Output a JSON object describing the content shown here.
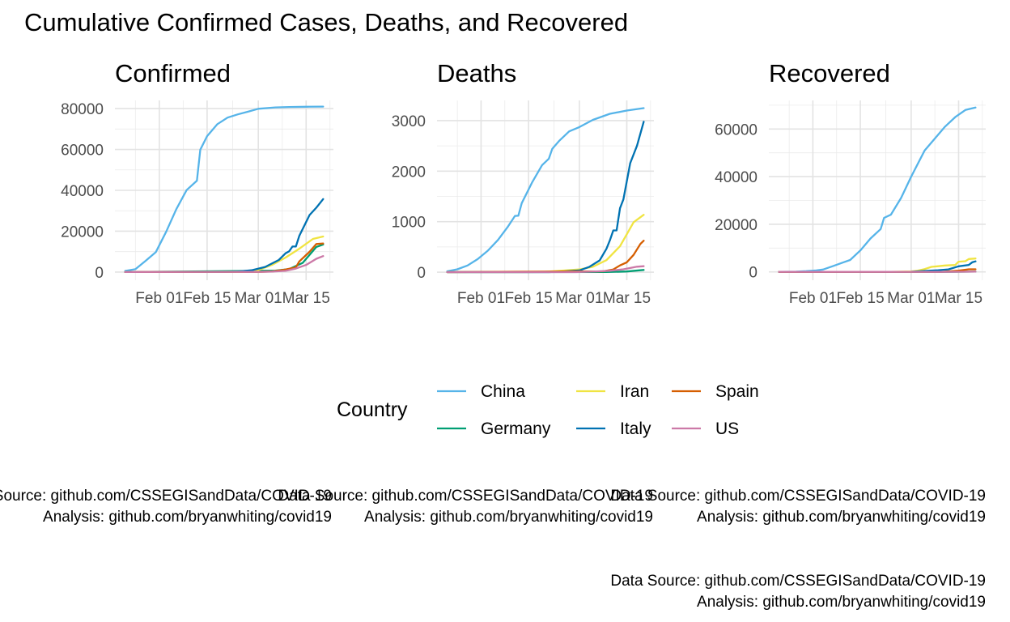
{
  "title": "Cumulative Confirmed Cases, Deaths, and Recovered",
  "legend": {
    "title": "Country",
    "entries": [
      {
        "name": "China",
        "color": "#56B4E9"
      },
      {
        "name": "Iran",
        "color": "#F0E442"
      },
      {
        "name": "Spain",
        "color": "#D55E00"
      },
      {
        "name": "Germany",
        "color": "#009E73"
      },
      {
        "name": "Italy",
        "color": "#0072B2"
      },
      {
        "name": "US",
        "color": "#CC79A7"
      }
    ]
  },
  "captions": [
    {
      "line1": "Data Source: github.com/CSSEGISandData/COVID-19",
      "line2": "Analysis: github.com/bryanwhiting/covid19"
    },
    {
      "line1": "Data Source: github.com/CSSEGISandData/COVID-19",
      "line2": "Analysis: github.com/bryanwhiting/covid19"
    },
    {
      "line1": "Data Source: github.com/CSSEGISandData/COVID-19",
      "line2": "Analysis: github.com/bryanwhiting/covid19"
    },
    {
      "line1": "Data Source: github.com/CSSEGISandData/COVID-19",
      "line2": "Analysis: github.com/bryanwhiting/covid19"
    }
  ],
  "chart_data": [
    {
      "type": "line",
      "title": "Confirmed",
      "xlabel": "",
      "ylabel": "",
      "x_ticks": [
        "Feb 01",
        "Feb 15",
        "Mar 01",
        "Mar 15"
      ],
      "y_ticks": [
        0,
        20000,
        40000,
        60000,
        80000
      ],
      "ylim": [
        -4000,
        84000
      ],
      "grid": true,
      "series": [
        {
          "name": "China",
          "points": [
            [
              "2020-01-22",
              548
            ],
            [
              "2020-01-25",
              1400
            ],
            [
              "2020-01-28",
              5500
            ],
            [
              "2020-01-31",
              9800
            ],
            [
              "2020-02-03",
              19700
            ],
            [
              "2020-02-06",
              30800
            ],
            [
              "2020-02-09",
              40100
            ],
            [
              "2020-02-12",
              44700
            ],
            [
              "2020-02-13",
              59900
            ],
            [
              "2020-02-15",
              66500
            ],
            [
              "2020-02-18",
              72400
            ],
            [
              "2020-02-21",
              75600
            ],
            [
              "2020-02-24",
              77200
            ],
            [
              "2020-02-27",
              78500
            ],
            [
              "2020-03-01",
              79900
            ],
            [
              "2020-03-06",
              80600
            ],
            [
              "2020-03-10",
              80800
            ],
            [
              "2020-03-15",
              80900
            ],
            [
              "2020-03-20",
              81000
            ]
          ]
        },
        {
          "name": "Germany",
          "points": [
            [
              "2020-01-22",
              0
            ],
            [
              "2020-03-06",
              670
            ],
            [
              "2020-03-10",
              1450
            ],
            [
              "2020-03-14",
              4500
            ],
            [
              "2020-03-18",
              12300
            ],
            [
              "2020-03-20",
              13500
            ]
          ]
        },
        {
          "name": "Iran",
          "points": [
            [
              "2020-01-22",
              0
            ],
            [
              "2020-02-19",
              2
            ],
            [
              "2020-02-25",
              95
            ],
            [
              "2020-03-01",
              978
            ],
            [
              "2020-03-05",
              3500
            ],
            [
              "2020-03-09",
              7100
            ],
            [
              "2020-03-13",
              11400
            ],
            [
              "2020-03-17",
              16200
            ],
            [
              "2020-03-20",
              17400
            ]
          ]
        },
        {
          "name": "Italy",
          "points": [
            [
              "2020-01-22",
              0
            ],
            [
              "2020-02-20",
              3
            ],
            [
              "2020-02-24",
              229
            ],
            [
              "2020-02-28",
              888
            ],
            [
              "2020-03-03",
              2500
            ],
            [
              "2020-03-07",
              5900
            ],
            [
              "2020-03-09",
              9200
            ],
            [
              "2020-03-10",
              10100
            ],
            [
              "2020-03-11",
              12500
            ],
            [
              "2020-03-12",
              12500
            ],
            [
              "2020-03-13",
              17700
            ],
            [
              "2020-03-16",
              27900
            ],
            [
              "2020-03-18",
              31500
            ],
            [
              "2020-03-20",
              35700
            ]
          ]
        },
        {
          "name": "Spain",
          "points": [
            [
              "2020-01-22",
              0
            ],
            [
              "2020-03-01",
              84
            ],
            [
              "2020-03-05",
              282
            ],
            [
              "2020-03-09",
              1230
            ],
            [
              "2020-03-12",
              2300
            ],
            [
              "2020-03-13",
              5200
            ],
            [
              "2020-03-16",
              9900
            ],
            [
              "2020-03-18",
              13700
            ],
            [
              "2020-03-20",
              14000
            ]
          ]
        },
        {
          "name": "US",
          "points": [
            [
              "2020-01-22",
              1
            ],
            [
              "2020-03-01",
              75
            ],
            [
              "2020-03-05",
              220
            ],
            [
              "2020-03-09",
              600
            ],
            [
              "2020-03-12",
              1700
            ],
            [
              "2020-03-15",
              3500
            ],
            [
              "2020-03-18",
              6500
            ],
            [
              "2020-03-20",
              7800
            ]
          ]
        }
      ]
    },
    {
      "type": "line",
      "title": "Deaths",
      "xlabel": "",
      "ylabel": "",
      "x_ticks": [
        "Feb 01",
        "Feb 15",
        "Mar 01",
        "Mar 15"
      ],
      "y_ticks": [
        0,
        1000,
        2000,
        3000
      ],
      "ylim": [
        -160,
        3400
      ],
      "grid": true,
      "series": [
        {
          "name": "China",
          "points": [
            [
              "2020-01-22",
              17
            ],
            [
              "2020-01-25",
              56
            ],
            [
              "2020-01-28",
              132
            ],
            [
              "2020-01-31",
              259
            ],
            [
              "2020-02-03",
              425
            ],
            [
              "2020-02-06",
              638
            ],
            [
              "2020-02-09",
              908
            ],
            [
              "2020-02-11",
              1113
            ],
            [
              "2020-02-12",
              1118
            ],
            [
              "2020-02-13",
              1367
            ],
            [
              "2020-02-16",
              1770
            ],
            [
              "2020-02-19",
              2118
            ],
            [
              "2020-02-21",
              2247
            ],
            [
              "2020-02-22",
              2442
            ],
            [
              "2020-02-24",
              2597
            ],
            [
              "2020-02-27",
              2788
            ],
            [
              "2020-03-01",
              2872
            ],
            [
              "2020-03-05",
              3015
            ],
            [
              "2020-03-10",
              3136
            ],
            [
              "2020-03-15",
              3199
            ],
            [
              "2020-03-20",
              3248
            ]
          ]
        },
        {
          "name": "Germany",
          "points": [
            [
              "2020-01-22",
              0
            ],
            [
              "2020-03-09",
              2
            ],
            [
              "2020-03-15",
              13
            ],
            [
              "2020-03-20",
              44
            ]
          ]
        },
        {
          "name": "Iran",
          "points": [
            [
              "2020-01-22",
              0
            ],
            [
              "2020-02-19",
              2
            ],
            [
              "2020-03-01",
              54
            ],
            [
              "2020-03-05",
              107
            ],
            [
              "2020-03-09",
              237
            ],
            [
              "2020-03-13",
              514
            ],
            [
              "2020-03-17",
              988
            ],
            [
              "2020-03-20",
              1135
            ]
          ]
        },
        {
          "name": "Italy",
          "points": [
            [
              "2020-01-22",
              0
            ],
            [
              "2020-02-21",
              1
            ],
            [
              "2020-02-25",
              11
            ],
            [
              "2020-03-01",
              34
            ],
            [
              "2020-03-04",
              107
            ],
            [
              "2020-03-07",
              233
            ],
            [
              "2020-03-09",
              463
            ],
            [
              "2020-03-10",
              631
            ],
            [
              "2020-03-11",
              827
            ],
            [
              "2020-03-12",
              827
            ],
            [
              "2020-03-13",
              1266
            ],
            [
              "2020-03-14",
              1441
            ],
            [
              "2020-03-16",
              2158
            ],
            [
              "2020-03-18",
              2503
            ],
            [
              "2020-03-20",
              2978
            ]
          ]
        },
        {
          "name": "Spain",
          "points": [
            [
              "2020-01-22",
              0
            ],
            [
              "2020-03-08",
              17
            ],
            [
              "2020-03-11",
              54
            ],
            [
              "2020-03-13",
              133
            ],
            [
              "2020-03-15",
              195
            ],
            [
              "2020-03-17",
              342
            ],
            [
              "2020-03-19",
              558
            ],
            [
              "2020-03-20",
              623
            ]
          ]
        },
        {
          "name": "US",
          "points": [
            [
              "2020-01-22",
              0
            ],
            [
              "2020-02-29",
              1
            ],
            [
              "2020-03-06",
              14
            ],
            [
              "2020-03-10",
              28
            ],
            [
              "2020-03-14",
              57
            ],
            [
              "2020-03-18",
              108
            ],
            [
              "2020-03-20",
              118
            ]
          ]
        }
      ]
    },
    {
      "type": "line",
      "title": "Recovered",
      "xlabel": "",
      "ylabel": "",
      "x_ticks": [
        "Feb 01",
        "Feb 15",
        "Mar 01",
        "Mar 15"
      ],
      "y_ticks": [
        0,
        20000,
        40000,
        60000
      ],
      "ylim": [
        -3500,
        72000
      ],
      "grid": true,
      "series": [
        {
          "name": "China",
          "points": [
            [
              "2020-01-22",
              28
            ],
            [
              "2020-01-27",
              100
            ],
            [
              "2020-01-30",
              300
            ],
            [
              "2020-02-02",
              600
            ],
            [
              "2020-02-04",
              1000
            ],
            [
              "2020-02-07",
              2500
            ],
            [
              "2020-02-10",
              4000
            ],
            [
              "2020-02-12",
              5000
            ],
            [
              "2020-02-15",
              9000
            ],
            [
              "2020-02-18",
              14000
            ],
            [
              "2020-02-21",
              18000
            ],
            [
              "2020-02-22",
              22700
            ],
            [
              "2020-02-24",
              24000
            ],
            [
              "2020-02-27",
              31000
            ],
            [
              "2020-03-01",
              40000
            ],
            [
              "2020-03-05",
              51000
            ],
            [
              "2020-03-08",
              56000
            ],
            [
              "2020-03-11",
              61000
            ],
            [
              "2020-03-14",
              65000
            ],
            [
              "2020-03-17",
              68000
            ],
            [
              "2020-03-20",
              69000
            ]
          ]
        },
        {
          "name": "Germany",
          "points": [
            [
              "2020-01-22",
              0
            ],
            [
              "2020-03-10",
              18
            ],
            [
              "2020-03-20",
              105
            ]
          ]
        },
        {
          "name": "Iran",
          "points": [
            [
              "2020-01-22",
              0
            ],
            [
              "2020-02-24",
              2
            ],
            [
              "2020-03-01",
              175
            ],
            [
              "2020-03-03",
              550
            ],
            [
              "2020-03-05",
              1200
            ],
            [
              "2020-03-07",
              2100
            ],
            [
              "2020-03-09",
              2400
            ],
            [
              "2020-03-11",
              2700
            ],
            [
              "2020-03-14",
              2900
            ],
            [
              "2020-03-15",
              4300
            ],
            [
              "2020-03-17",
              4500
            ],
            [
              "2020-03-18",
              5400
            ],
            [
              "2020-03-20",
              5600
            ]
          ]
        },
        {
          "name": "Italy",
          "points": [
            [
              "2020-01-22",
              0
            ],
            [
              "2020-02-22",
              1
            ],
            [
              "2020-03-01",
              83
            ],
            [
              "2020-03-05",
              414
            ],
            [
              "2020-03-09",
              724
            ],
            [
              "2020-03-12",
              1045
            ],
            [
              "2020-03-15",
              2335
            ],
            [
              "2020-03-18",
              2941
            ],
            [
              "2020-03-19",
              4025
            ],
            [
              "2020-03-20",
              4440
            ]
          ]
        },
        {
          "name": "Spain",
          "points": [
            [
              "2020-01-22",
              0
            ],
            [
              "2020-03-10",
              32
            ],
            [
              "2020-03-15",
              517
            ],
            [
              "2020-03-18",
              1081
            ],
            [
              "2020-03-20",
              1107
            ]
          ]
        },
        {
          "name": "US",
          "points": [
            [
              "2020-01-22",
              0
            ],
            [
              "2020-02-21",
              3
            ],
            [
              "2020-03-10",
              8
            ],
            [
              "2020-03-20",
              106
            ]
          ]
        }
      ]
    }
  ]
}
